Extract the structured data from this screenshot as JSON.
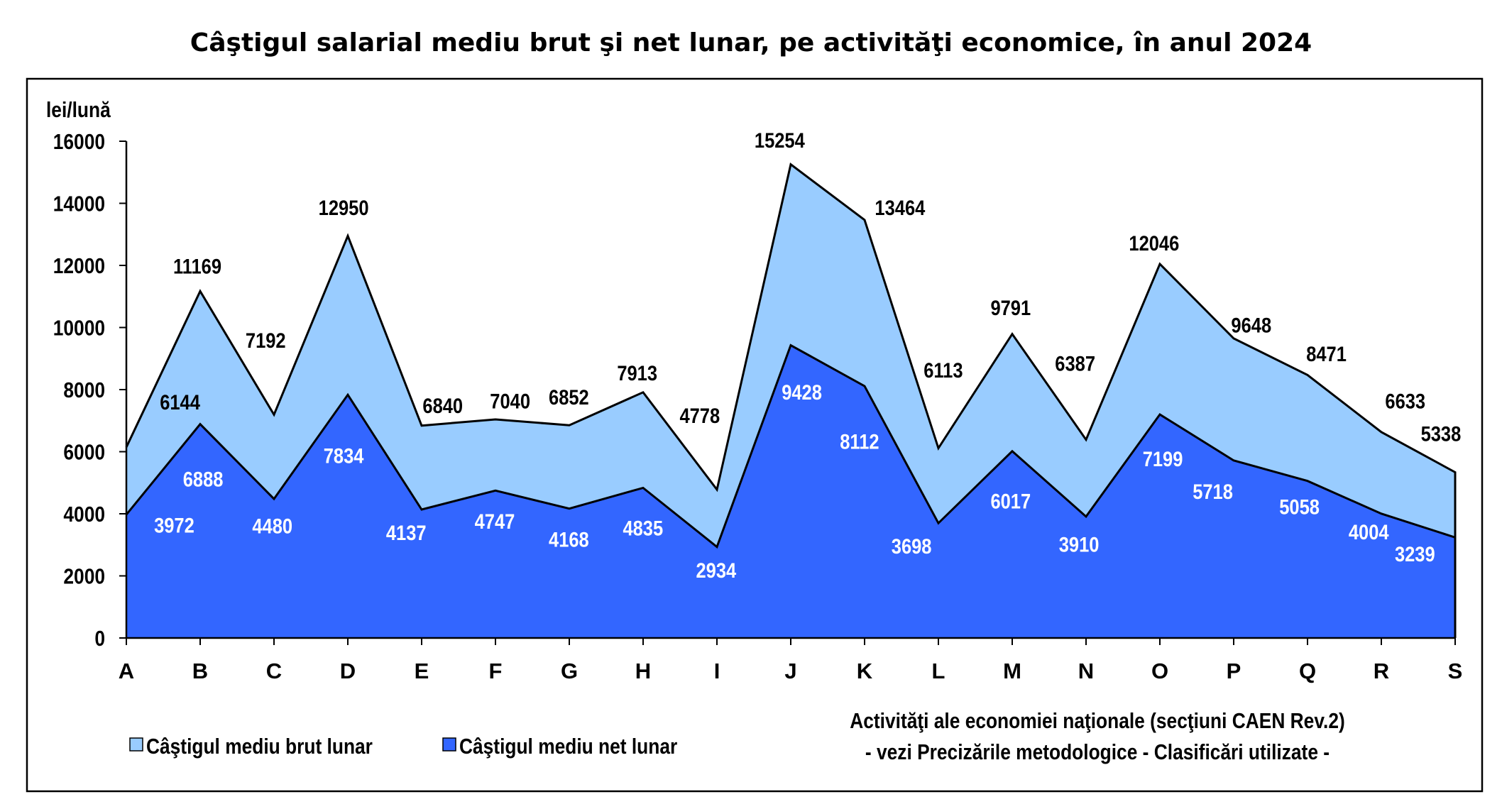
{
  "chart_data": {
    "type": "area",
    "title": "Câştigul salarial mediu brut şi net lunar, pe activităţi economice, în anul 2024",
    "ylabel": "lei/lună",
    "xlabel_lines": [
      "Activităţi ale economiei naţionale (secţiuni CAEN Rev.2)",
      "- vezi Precizările metodologice - Clasificări utilizate -"
    ],
    "ylim": [
      0,
      16000
    ],
    "yticks": [
      "0",
      "2000",
      "4000",
      "6000",
      "8000",
      "10000",
      "12000",
      "14000",
      "16000"
    ],
    "grid": false,
    "legend_position": "bottom-left",
    "categories": [
      "A",
      "B",
      "C",
      "D",
      "E",
      "F",
      "G",
      "H",
      "I",
      "J",
      "K",
      "L",
      "M",
      "N",
      "O",
      "P",
      "Q",
      "R",
      "S"
    ],
    "series": [
      {
        "name": "Câştigul mediu brut lunar",
        "color": "#99ccff",
        "values": [
          6144,
          11169,
          7192,
          12950,
          6840,
          7040,
          6852,
          7913,
          4778,
          15254,
          13464,
          6113,
          9791,
          6387,
          12046,
          9648,
          8471,
          6633,
          5338
        ]
      },
      {
        "name": "Câştigul mediu net lunar",
        "color": "#3366ff",
        "values": [
          3972,
          6888,
          4480,
          7834,
          4137,
          4747,
          4168,
          4835,
          2934,
          9428,
          8112,
          3698,
          6017,
          3910,
          7199,
          5718,
          5058,
          4004,
          3239
        ]
      }
    ]
  }
}
